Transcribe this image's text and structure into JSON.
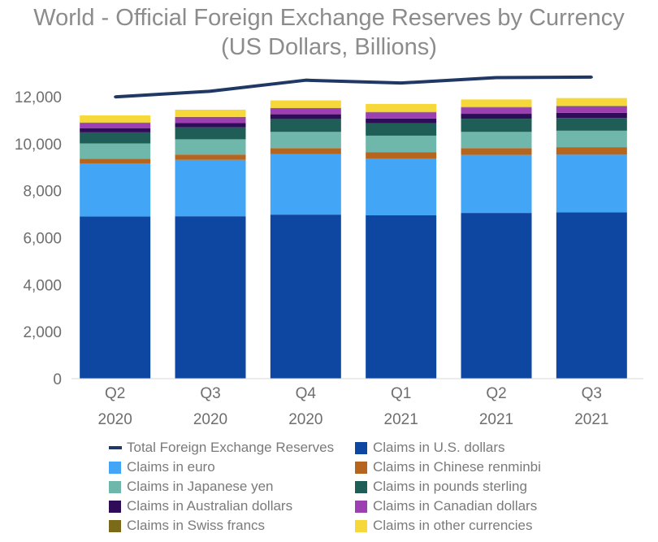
{
  "chart_data": {
    "type": "bar",
    "stacked": true,
    "title": "World - Official Foreign Exchange Reserves by Currency",
    "subtitle": "(US Dollars, Billions)",
    "xlabel": "",
    "ylabel": "",
    "ylim": [
      0,
      13000
    ],
    "yticks": [
      0,
      2000,
      4000,
      6000,
      8000,
      10000,
      12000
    ],
    "ytick_labels": [
      "0",
      "2,000",
      "4,000",
      "6,000",
      "8,000",
      "10,000",
      "12,000"
    ],
    "categories": [
      "Q2 2020",
      "Q3 2020",
      "Q4 2020",
      "Q1 2021",
      "Q2 2021",
      "Q3 2021"
    ],
    "category_lines": [
      [
        "Q2",
        "2020"
      ],
      [
        "Q3",
        "2020"
      ],
      [
        "Q4",
        "2020"
      ],
      [
        "Q1",
        "2021"
      ],
      [
        "Q2",
        "2021"
      ],
      [
        "Q3",
        "2021"
      ]
    ],
    "line_series": {
      "name": "Total Foreign Exchange Reserves",
      "color": "#1f3864",
      "values": [
        11990,
        12230,
        12700,
        12580,
        12810,
        12830
      ]
    },
    "series": [
      {
        "name": "Claims in U.S. dollars",
        "color": "#0d47a1",
        "values": [
          6900,
          6910,
          6980,
          6950,
          7050,
          7080
        ]
      },
      {
        "name": "Claims in euro",
        "color": "#42a5f5",
        "values": [
          2250,
          2400,
          2570,
          2420,
          2470,
          2450
        ]
      },
      {
        "name": "Claims in Chinese renminbi",
        "color": "#b5651d",
        "values": [
          210,
          225,
          260,
          270,
          290,
          320
        ]
      },
      {
        "name": "Claims in Japanese yen",
        "color": "#6fb7aa",
        "values": [
          650,
          650,
          690,
          700,
          690,
          700
        ]
      },
      {
        "name": "Claims in pounds sterling",
        "color": "#1e5e57",
        "values": [
          470,
          510,
          550,
          530,
          560,
          540
        ]
      },
      {
        "name": "Claims in Australian dollars",
        "color": "#2e0c57",
        "values": [
          170,
          180,
          200,
          200,
          210,
          220
        ]
      },
      {
        "name": "Claims in Canadian dollars",
        "color": "#9c3fb0",
        "values": [
          230,
          240,
          250,
          260,
          270,
          280
        ]
      },
      {
        "name": "Claims in Swiss francs",
        "color": "#7a6a1a",
        "values": [
          20,
          20,
          20,
          20,
          20,
          20
        ]
      },
      {
        "name": "Claims in other currencies",
        "color": "#f7d83a",
        "values": [
          300,
          310,
          320,
          340,
          320,
          330
        ]
      }
    ],
    "legend": [
      {
        "label": "Total Foreign Exchange Reserves",
        "color": "#1f3864",
        "kind": "line"
      },
      {
        "label": "Claims in U.S. dollars",
        "color": "#0d47a1",
        "kind": "box"
      },
      {
        "label": "Claims in euro",
        "color": "#42a5f5",
        "kind": "box"
      },
      {
        "label": "Claims in Chinese renminbi",
        "color": "#b5651d",
        "kind": "box"
      },
      {
        "label": "Claims in Japanese yen",
        "color": "#6fb7aa",
        "kind": "box"
      },
      {
        "label": "Claims in pounds sterling",
        "color": "#1e5e57",
        "kind": "box"
      },
      {
        "label": "Claims in Australian dollars",
        "color": "#2e0c57",
        "kind": "box"
      },
      {
        "label": "Claims in Canadian dollars",
        "color": "#9c3fb0",
        "kind": "box"
      },
      {
        "label": "Claims in Swiss francs",
        "color": "#7a6a1a",
        "kind": "box"
      },
      {
        "label": "Claims in other currencies",
        "color": "#f7d83a",
        "kind": "box"
      }
    ],
    "legend_position": "bottom",
    "grid": false
  }
}
